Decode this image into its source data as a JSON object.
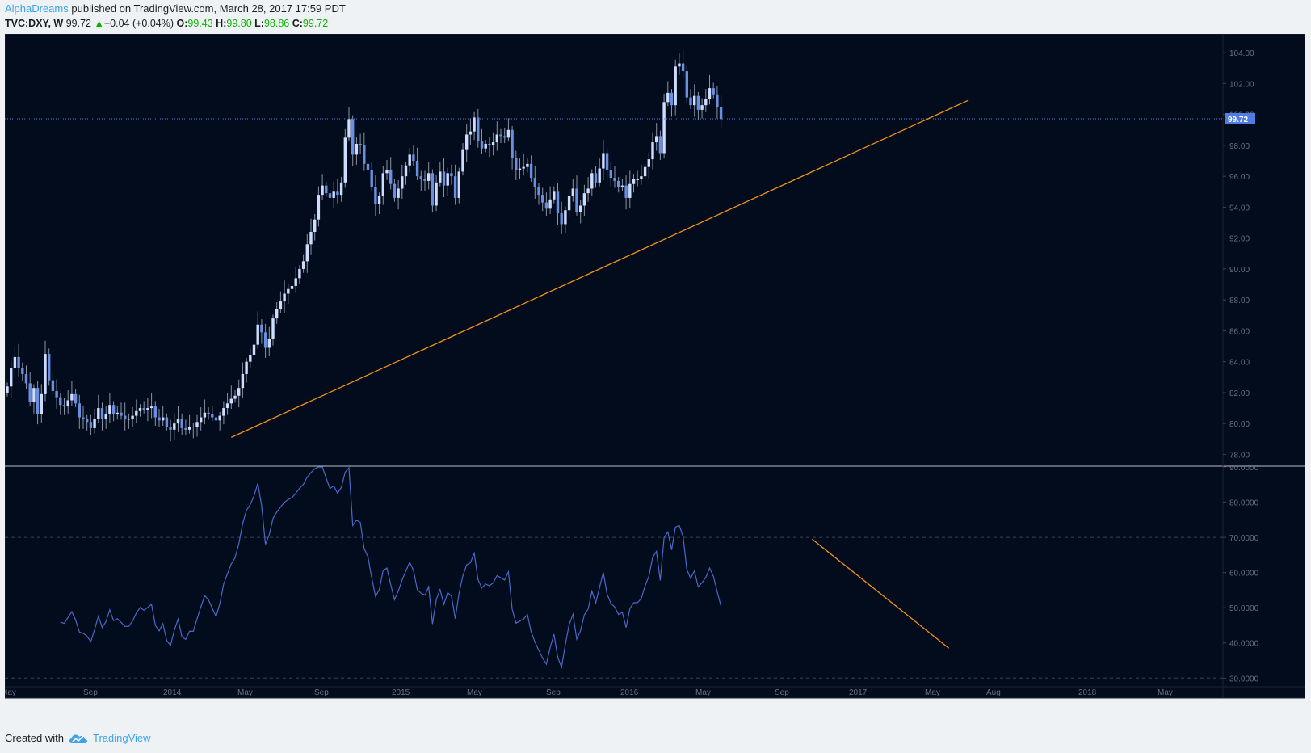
{
  "header": {
    "author": "AlphaDreams",
    "published_text": "published on TradingView.com, March 28, 2017 17:59 PDT",
    "symbol": "TVC:DXY, W",
    "last": "99.72",
    "change_arrow": "▲",
    "change": "+0.04 (+0.04%)",
    "open_label": "O:",
    "open": "99.43",
    "high_label": "H:",
    "high": "99.80",
    "low_label": "L:",
    "low": "98.86",
    "close_label": "C:",
    "close": "99.72"
  },
  "footer": {
    "created_with": "Created with",
    "brand": "TradingView",
    "logo_icon": "tradingview-cloud-icon"
  },
  "colors": {
    "background": "#030c1c",
    "candle": "#6a8fe0",
    "candle_up": "#cfdcff",
    "wick": "#8a93a3",
    "trendline": "#f0921a",
    "rsi_line": "#4a69c9",
    "price_line": "#5b7fe0",
    "axis_text": "#6a7280",
    "page": "#eef2f5",
    "accent": "#3ea3e6"
  },
  "chart_data": {
    "type": "candlestick_with_rsi",
    "symbol": "TVC:DXY",
    "interval": "W",
    "x_start": "2013-05",
    "price_axis": {
      "ylim": [
        77.5,
        105.0
      ],
      "ticks": [
        "78.00",
        "80.00",
        "82.00",
        "84.00",
        "86.00",
        "88.00",
        "90.00",
        "92.00",
        "94.00",
        "96.00",
        "98.00",
        "100.00",
        "102.00",
        "104.00"
      ]
    },
    "current_price_label": "99.72",
    "time_axis_labels": [
      "May",
      "Sep",
      "2014",
      "May",
      "Sep",
      "2015",
      "May",
      "Sep",
      "2016",
      "May",
      "Sep",
      "2017",
      "May",
      "Aug",
      "2018",
      "May"
    ],
    "closes": [
      82.4,
      83.6,
      84.3,
      83.6,
      83.2,
      82.6,
      81.4,
      82.3,
      80.6,
      81.9,
      84.5,
      82.8,
      82.1,
      81.7,
      81.2,
      81.1,
      81.5,
      81.9,
      81.3,
      80.4,
      80.3,
      80.1,
      79.7,
      80.3,
      81.0,
      80.3,
      80.6,
      81.2,
      80.6,
      80.7,
      80.5,
      80.3,
      80.3,
      80.5,
      80.8,
      81.0,
      80.9,
      81.0,
      81.1,
      80.4,
      80.2,
      80.4,
      79.8,
      79.6,
      80.0,
      80.3,
      79.7,
      79.6,
      79.8,
      79.8,
      80.1,
      80.4,
      80.7,
      80.6,
      80.4,
      80.2,
      80.5,
      81.0,
      81.3,
      81.6,
      81.8,
      82.3,
      83.2,
      84.0,
      84.4,
      85.1,
      86.4,
      85.9,
      84.9,
      85.5,
      86.8,
      87.4,
      87.9,
      88.4,
      88.7,
      88.9,
      89.4,
      90.0,
      90.5,
      91.6,
      92.4,
      93.2,
      94.8,
      95.4,
      94.9,
      94.6,
      95.0,
      94.8,
      95.6,
      98.5,
      99.7,
      97.4,
      98.1,
      98.0,
      96.8,
      96.4,
      95.3,
      94.2,
      94.7,
      96.2,
      96.4,
      95.5,
      94.6,
      95.2,
      96.0,
      96.7,
      97.4,
      97.0,
      96.0,
      95.8,
      95.7,
      96.2,
      94.1,
      95.6,
      96.3,
      95.4,
      96.2,
      96.0,
      94.6,
      96.3,
      97.7,
      98.7,
      98.9,
      99.8,
      98.3,
      97.8,
      98.1,
      98.0,
      98.2,
      98.7,
      98.6,
      98.5,
      99.0,
      97.2,
      96.4,
      96.5,
      96.6,
      96.8,
      95.9,
      95.3,
      94.8,
      94.3,
      93.9,
      94.5,
      95.0,
      93.6,
      92.9,
      93.8,
      94.7,
      95.2,
      93.7,
      94.1,
      94.9,
      95.2,
      96.2,
      95.6,
      96.5,
      97.5,
      96.4,
      95.9,
      95.7,
      95.3,
      95.4,
      94.6,
      95.5,
      95.8,
      95.8,
      96.0,
      96.6,
      97.1,
      98.2,
      98.6,
      97.5,
      100.8,
      101.4,
      100.6,
      103.1,
      103.3,
      102.8,
      101.1,
      100.6,
      101.2,
      100.3,
      100.6,
      101.0,
      101.7,
      101.3,
      100.5,
      99.7
    ],
    "rsi_panel": {
      "ylim": [
        28,
        90
      ],
      "ticks": [
        "30.0000",
        "40.0000",
        "50.0000",
        "60.0000",
        "70.0000",
        "80.0000",
        "90.0000"
      ],
      "overbought": 70,
      "oversold": 30
    },
    "trendline_price": {
      "from": {
        "index": 59,
        "value": 79.1
      },
      "to": {
        "index": 253,
        "value": 100.9
      }
    },
    "trendline_rsi": {
      "from": {
        "index": 212,
        "value": 69.5
      },
      "to": {
        "index": 248,
        "value": 38.5
      }
    }
  }
}
